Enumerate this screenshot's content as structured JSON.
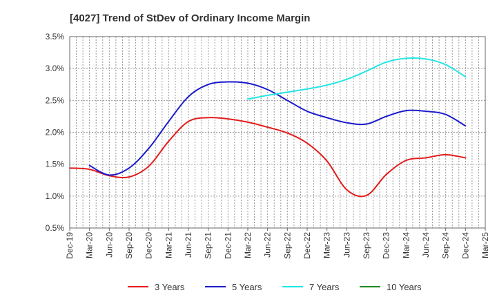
{
  "chart_data": {
    "type": "line",
    "title": "[4027]  Trend of StDev of Ordinary Income Margin",
    "xlabel": "",
    "ylabel": "",
    "x_ticks": [
      "Dec-19",
      "Mar-20",
      "Jun-20",
      "Sep-20",
      "Dec-20",
      "Mar-21",
      "Jun-21",
      "Sep-21",
      "Dec-21",
      "Mar-22",
      "Jun-22",
      "Sep-22",
      "Dec-22",
      "Mar-23",
      "Jun-23",
      "Sep-23",
      "Dec-23",
      "Mar-24",
      "Jun-24",
      "Sep-24",
      "Dec-24",
      "Mar-25"
    ],
    "y_ticks": [
      "0.5%",
      "1.0%",
      "1.5%",
      "2.0%",
      "2.5%",
      "3.0%",
      "3.5%"
    ],
    "ylim": [
      0.5,
      3.5
    ],
    "grid": true,
    "legend_position": "bottom",
    "series": [
      {
        "name": "3 Years",
        "color": "#e41a1a",
        "values": [
          [
            "Dec-19",
            1.44
          ],
          [
            "Mar-20",
            1.42
          ],
          [
            "Jun-20",
            1.32
          ],
          [
            "Sep-20",
            1.3
          ],
          [
            "Dec-20",
            1.47
          ],
          [
            "Mar-21",
            1.86
          ],
          [
            "Jun-21",
            2.17
          ],
          [
            "Sep-21",
            2.23
          ],
          [
            "Dec-21",
            2.21
          ],
          [
            "Mar-22",
            2.16
          ],
          [
            "Jun-22",
            2.08
          ],
          [
            "Sep-22",
            1.99
          ],
          [
            "Dec-22",
            1.83
          ],
          [
            "Mar-23",
            1.55
          ],
          [
            "Jun-23",
            1.1
          ],
          [
            "Sep-23",
            1.01
          ],
          [
            "Dec-23",
            1.34
          ],
          [
            "Mar-24",
            1.56
          ],
          [
            "Jun-24",
            1.6
          ],
          [
            "Sep-24",
            1.65
          ],
          [
            "Dec-24",
            1.6
          ]
        ]
      },
      {
        "name": "5 Years",
        "color": "#1a1acc",
        "values": [
          [
            "Mar-20",
            1.48
          ],
          [
            "Jun-20",
            1.33
          ],
          [
            "Sep-20",
            1.44
          ],
          [
            "Dec-20",
            1.75
          ],
          [
            "Mar-21",
            2.17
          ],
          [
            "Jun-21",
            2.56
          ],
          [
            "Sep-21",
            2.75
          ],
          [
            "Dec-21",
            2.79
          ],
          [
            "Mar-22",
            2.77
          ],
          [
            "Jun-22",
            2.67
          ],
          [
            "Sep-22",
            2.5
          ],
          [
            "Dec-22",
            2.33
          ],
          [
            "Mar-23",
            2.23
          ],
          [
            "Jun-23",
            2.15
          ],
          [
            "Sep-23",
            2.13
          ],
          [
            "Dec-23",
            2.25
          ],
          [
            "Mar-24",
            2.34
          ],
          [
            "Jun-24",
            2.33
          ],
          [
            "Sep-24",
            2.28
          ],
          [
            "Dec-24",
            2.1
          ]
        ]
      },
      {
        "name": "7 Years",
        "color": "#22e5e5",
        "values": [
          [
            "Mar-22",
            2.52
          ],
          [
            "Jun-22",
            2.58
          ],
          [
            "Sep-22",
            2.63
          ],
          [
            "Dec-22",
            2.68
          ],
          [
            "Mar-23",
            2.74
          ],
          [
            "Jun-23",
            2.83
          ],
          [
            "Sep-23",
            2.96
          ],
          [
            "Dec-23",
            3.1
          ],
          [
            "Mar-24",
            3.16
          ],
          [
            "Jun-24",
            3.15
          ],
          [
            "Sep-24",
            3.06
          ],
          [
            "Dec-24",
            2.87
          ]
        ]
      },
      {
        "name": "10 Years",
        "color": "#228b22",
        "values": []
      }
    ]
  }
}
